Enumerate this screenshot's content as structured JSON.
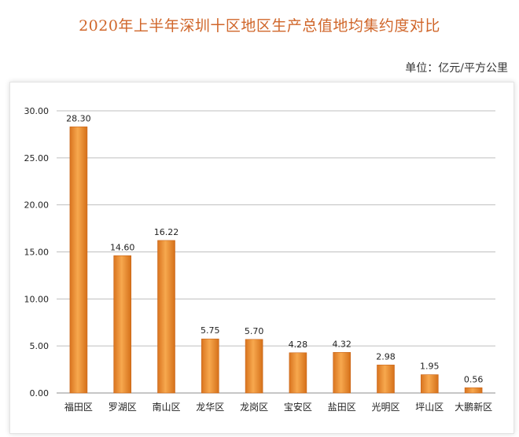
{
  "header": {
    "title": "2020年上半年深圳十区地区生产总值地均集约度对比",
    "unit": "单位：亿元/平方公里"
  },
  "colors": {
    "title": "#d0662a",
    "bar_light": "#f9b56a",
    "bar_mid": "#f0922f",
    "bar_dark": "#c9651a",
    "grid": "#bfbfbf"
  },
  "chart_data": {
    "type": "bar",
    "title": "2020年上半年深圳十区地区生产总值地均集约度对比",
    "xlabel": "",
    "ylabel": "",
    "unit": "单位：亿元/平方公里",
    "categories": [
      "福田区",
      "罗湖区",
      "南山区",
      "龙华区",
      "龙岗区",
      "宝安区",
      "盐田区",
      "光明区",
      "坪山区",
      "大鹏新区"
    ],
    "values": [
      28.3,
      14.6,
      16.22,
      5.75,
      5.7,
      4.28,
      4.32,
      2.98,
      1.95,
      0.56
    ],
    "value_labels": [
      "28.30",
      "14.60",
      "16.22",
      "5.75",
      "5.70",
      "4.28",
      "4.32",
      "2.98",
      "1.95",
      "0.56"
    ],
    "ylim": [
      0,
      30
    ],
    "yticks": [
      "0.00",
      "5.00",
      "10.00",
      "15.00",
      "20.00",
      "25.00",
      "30.00"
    ],
    "grid": true,
    "legend": "none"
  }
}
